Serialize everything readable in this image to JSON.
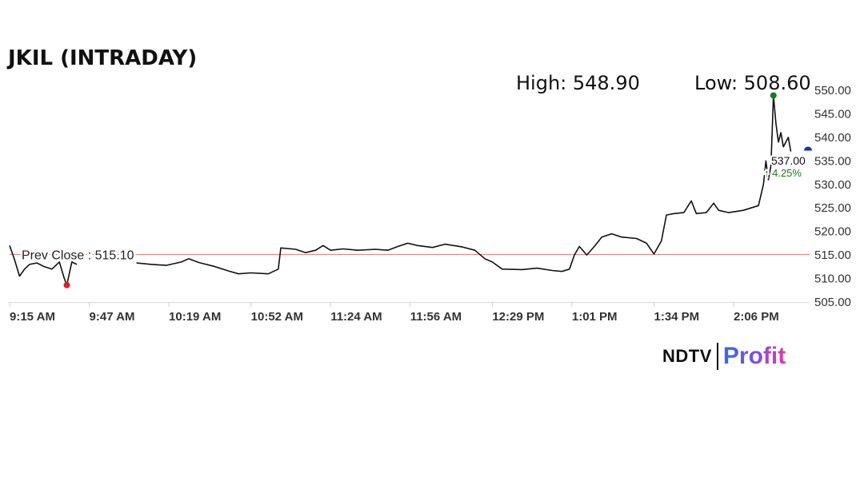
{
  "title": "JKIL (INTRADAY)",
  "stats": {
    "high": "High: 548.90",
    "low": "Low: 508.60"
  },
  "brand": {
    "ndtv": "NDTV",
    "profit": "Profit"
  },
  "colors": {
    "line": "#111111",
    "prev_close_line": "#e88080",
    "high_marker": "#1a7a1a",
    "low_marker": "#e02020",
    "current_marker": "#1a2fb0",
    "change": "#1a7a1a"
  },
  "chart_data": {
    "type": "line",
    "title": "JKIL (INTRADAY)",
    "x_ticks": [
      "9:15 AM",
      "9:47 AM",
      "10:19 AM",
      "10:52 AM",
      "11:24 AM",
      "11:56 AM",
      "12:29 PM",
      "1:01 PM",
      "1:34 PM",
      "2:06 PM"
    ],
    "y_ticks": [
      "550.00",
      "545.00",
      "540.00",
      "535.00",
      "530.00",
      "525.00",
      "520.00",
      "515.00",
      "510.00",
      "505.00"
    ],
    "ylim": [
      505,
      550
    ],
    "grid": false,
    "prev_close": {
      "label": "Prev Close : 515.10",
      "value": 515.1
    },
    "high": {
      "time": "2:22 PM",
      "value": 548.9
    },
    "low": {
      "time": "9:38 AM",
      "value": 508.6
    },
    "current": {
      "label": "537.00",
      "value": 537.0,
      "change": "4.25%",
      "change_arrow": "↑"
    },
    "series": [
      {
        "points": [
          [
            "9:15 AM",
            517.0
          ],
          [
            "9:17 AM",
            514.0
          ],
          [
            "9:19 AM",
            510.5
          ],
          [
            "9:21 AM",
            512.0
          ],
          [
            "9:23 AM",
            513.0
          ],
          [
            "9:26 AM",
            513.3
          ],
          [
            "9:29 AM",
            512.5
          ],
          [
            "9:32 AM",
            512.0
          ],
          [
            "9:35 AM",
            513.5
          ],
          [
            "9:37 AM",
            510.0
          ],
          [
            "9:38 AM",
            508.6
          ],
          [
            "9:40 AM",
            513.5
          ],
          [
            "9:42 AM",
            513.0
          ],
          null,
          [
            "10:06 AM",
            513.3
          ],
          [
            "10:12 AM",
            513.0
          ],
          [
            "10:18 AM",
            512.8
          ],
          [
            "10:24 AM",
            513.5
          ],
          [
            "10:27 AM",
            514.2
          ],
          [
            "10:31 AM",
            513.4
          ],
          [
            "10:37 AM",
            512.6
          ],
          [
            "10:43 AM",
            511.6
          ],
          [
            "10:47 AM",
            511.0
          ],
          [
            "10:52 AM",
            511.2
          ],
          [
            "10:59 AM",
            511.0
          ],
          [
            "11:03 AM",
            512.0
          ],
          [
            "11:04 AM",
            516.5
          ],
          [
            "11:10 AM",
            516.2
          ],
          [
            "11:14 AM",
            515.5
          ],
          [
            "11:18 AM",
            516.0
          ],
          [
            "11:21 AM",
            517.0
          ],
          [
            "11:24 AM",
            516.0
          ],
          [
            "11:29 AM",
            516.3
          ],
          [
            "11:35 AM",
            516.0
          ],
          [
            "11:42 AM",
            516.2
          ],
          [
            "11:47 AM",
            516.0
          ],
          [
            "11:51 AM",
            516.8
          ],
          [
            "11:55 AM",
            517.5
          ],
          [
            "11:59 AM",
            517.0
          ],
          [
            "12:05 PM",
            516.6
          ],
          [
            "12:10 PM",
            517.3
          ],
          [
            "12:17 PM",
            516.7
          ],
          [
            "12:22 PM",
            516.0
          ],
          [
            "12:26 PM",
            514.2
          ],
          [
            "12:29 PM",
            513.5
          ],
          [
            "12:33 PM",
            512.0
          ],
          [
            "12:41 PM",
            511.9
          ],
          [
            "12:47 PM",
            512.2
          ],
          [
            "12:53 PM",
            511.7
          ],
          [
            "12:57 PM",
            511.5
          ],
          [
            "1:00 PM",
            512.0
          ],
          [
            "1:02 PM",
            515.0
          ],
          [
            "1:04 PM",
            516.8
          ],
          [
            "1:07 PM",
            515.0
          ],
          [
            "1:10 PM",
            516.8
          ],
          [
            "1:13 PM",
            518.8
          ],
          [
            "1:17 PM",
            519.5
          ],
          [
            "1:21 PM",
            518.8
          ],
          [
            "1:27 PM",
            518.5
          ],
          [
            "1:31 PM",
            517.5
          ],
          [
            "1:34 PM",
            515.2
          ],
          [
            "1:37 PM",
            518.0
          ],
          [
            "1:39 PM",
            523.5
          ],
          [
            "1:42 PM",
            523.8
          ],
          [
            "1:46 PM",
            524.0
          ],
          [
            "1:49 PM",
            526.5
          ],
          [
            "1:51 PM",
            523.8
          ],
          [
            "1:55 PM",
            524.0
          ],
          [
            "1:58 PM",
            526.0
          ],
          [
            "2:00 PM",
            524.5
          ],
          [
            "2:04 PM",
            524.0
          ],
          [
            "2:10 PM",
            524.5
          ],
          [
            "2:16 PM",
            525.5
          ],
          [
            "2:18 PM",
            530.0
          ],
          [
            "2:19 PM",
            535.0
          ],
          [
            "2:20 PM",
            531.0
          ],
          [
            "2:21 PM",
            534.0
          ],
          [
            "2:22 PM",
            548.9
          ],
          [
            "2:23 PM",
            543.0
          ],
          [
            "2:24 PM",
            539.0
          ],
          [
            "2:25 PM",
            541.0
          ],
          [
            "2:26 PM",
            538.0
          ],
          [
            "2:28 PM",
            540.0
          ],
          [
            "2:29 PM",
            537.0
          ]
        ]
      }
    ]
  }
}
